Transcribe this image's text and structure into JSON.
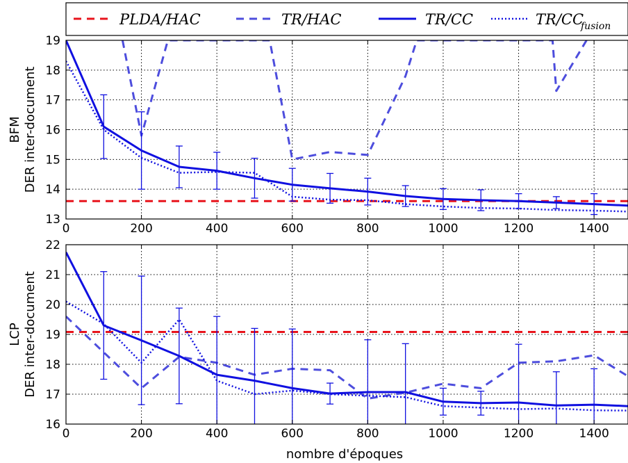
{
  "chart_data": {
    "type": "line",
    "xlabel": "nombre d'époques",
    "xlim": [
      0,
      1490
    ],
    "xticks": [
      0,
      200,
      400,
      600,
      800,
      1000,
      1200,
      1400
    ],
    "grid": true,
    "legend": {
      "placement": "top",
      "entries": [
        {
          "text": "PLDA/HAC",
          "sub": ""
        },
        {
          "text": "TR/HAC",
          "sub": ""
        },
        {
          "text": "TR/CC",
          "sub": ""
        },
        {
          "text": "TR/CC",
          "sub": "fusion"
        }
      ]
    },
    "colors": {
      "red": "#e8141c",
      "blue_light": "#4d4ddd",
      "blue": "#1010e0"
    },
    "panels": [
      {
        "ylabel_line1": "BFM",
        "ylabel_line2": "DER inter-document",
        "ylim": [
          13,
          19
        ],
        "yticks": [
          13,
          14,
          15,
          16,
          17,
          18,
          19
        ],
        "baseline": 13.6,
        "series": [
          {
            "key": "tr_hac",
            "x": [
              150,
              200,
              270,
              540,
              600,
              700,
              800,
              900,
              930,
              1290,
              1300,
              1380
            ],
            "values": [
              19.0,
              15.8,
              19.0,
              19.0,
              15.0,
              15.25,
              15.15,
              17.8,
              19.0,
              19.0,
              17.3,
              19.0
            ]
          },
          {
            "key": "tr_cc",
            "x": [
              0,
              100,
              200,
              300,
              400,
              500,
              600,
              700,
              800,
              900,
              1000,
              1100,
              1200,
              1300,
              1400,
              1490
            ],
            "values": [
              19.0,
              16.1,
              15.3,
              14.75,
              14.62,
              14.37,
              14.15,
              14.03,
              13.92,
              13.77,
              13.67,
              13.63,
              13.6,
              13.55,
              13.5,
              13.45
            ],
            "err": [
              null,
              1.07,
              1.3,
              0.7,
              0.62,
              0.67,
              0.55,
              0.5,
              0.45,
              0.35,
              0.35,
              0.35,
              0.25,
              0.2,
              0.35,
              null
            ]
          },
          {
            "key": "tr_cc_fusion",
            "x": [
              0,
              100,
              200,
              300,
              400,
              500,
              600,
              700,
              800,
              900,
              1000,
              1100,
              1200,
              1300,
              1400,
              1490
            ],
            "values": [
              18.3,
              16.0,
              15.05,
              14.55,
              14.58,
              14.55,
              13.75,
              13.65,
              13.63,
              13.5,
              13.42,
              13.37,
              13.35,
              13.3,
              13.28,
              13.25
            ]
          }
        ]
      },
      {
        "ylabel_line1": "LCP",
        "ylabel_line2": "DER inter-document",
        "ylim": [
          16,
          22
        ],
        "yticks": [
          16,
          17,
          18,
          19,
          20,
          21,
          22
        ],
        "baseline": 19.08,
        "series": [
          {
            "key": "tr_hac",
            "x": [
              0,
              100,
              200,
              300,
              400,
              500,
              600,
              700,
              800,
              900,
              1000,
              1100,
              1200,
              1300,
              1400,
              1490
            ],
            "values": [
              19.6,
              18.4,
              17.2,
              18.25,
              18.05,
              17.65,
              17.85,
              17.8,
              16.85,
              17.05,
              17.35,
              17.2,
              18.05,
              18.1,
              18.3,
              17.6
            ]
          },
          {
            "key": "tr_cc",
            "x": [
              0,
              100,
              200,
              300,
              400,
              500,
              600,
              700,
              800,
              900,
              1000,
              1100,
              1200,
              1300,
              1400,
              1490
            ],
            "values": [
              21.75,
              19.3,
              18.8,
              18.28,
              17.65,
              17.45,
              17.2,
              17.02,
              17.07,
              17.07,
              16.75,
              16.7,
              16.72,
              16.62,
              16.65,
              16.6
            ],
            "err": [
              null,
              1.8,
              2.15,
              1.6,
              1.95,
              1.75,
              1.98,
              0.35,
              1.75,
              1.62,
              0.45,
              0.4,
              1.95,
              1.13,
              1.2,
              null
            ]
          },
          {
            "key": "tr_cc_fusion",
            "x": [
              0,
              100,
              200,
              300,
              400,
              500,
              600,
              700,
              800,
              900,
              1000,
              1100,
              1200,
              1300,
              1400,
              1490
            ],
            "values": [
              20.1,
              19.35,
              18.05,
              19.5,
              17.45,
              17.0,
              17.12,
              17.0,
              16.95,
              16.9,
              16.6,
              16.55,
              16.5,
              16.52,
              16.46,
              16.45
            ]
          }
        ]
      }
    ]
  }
}
